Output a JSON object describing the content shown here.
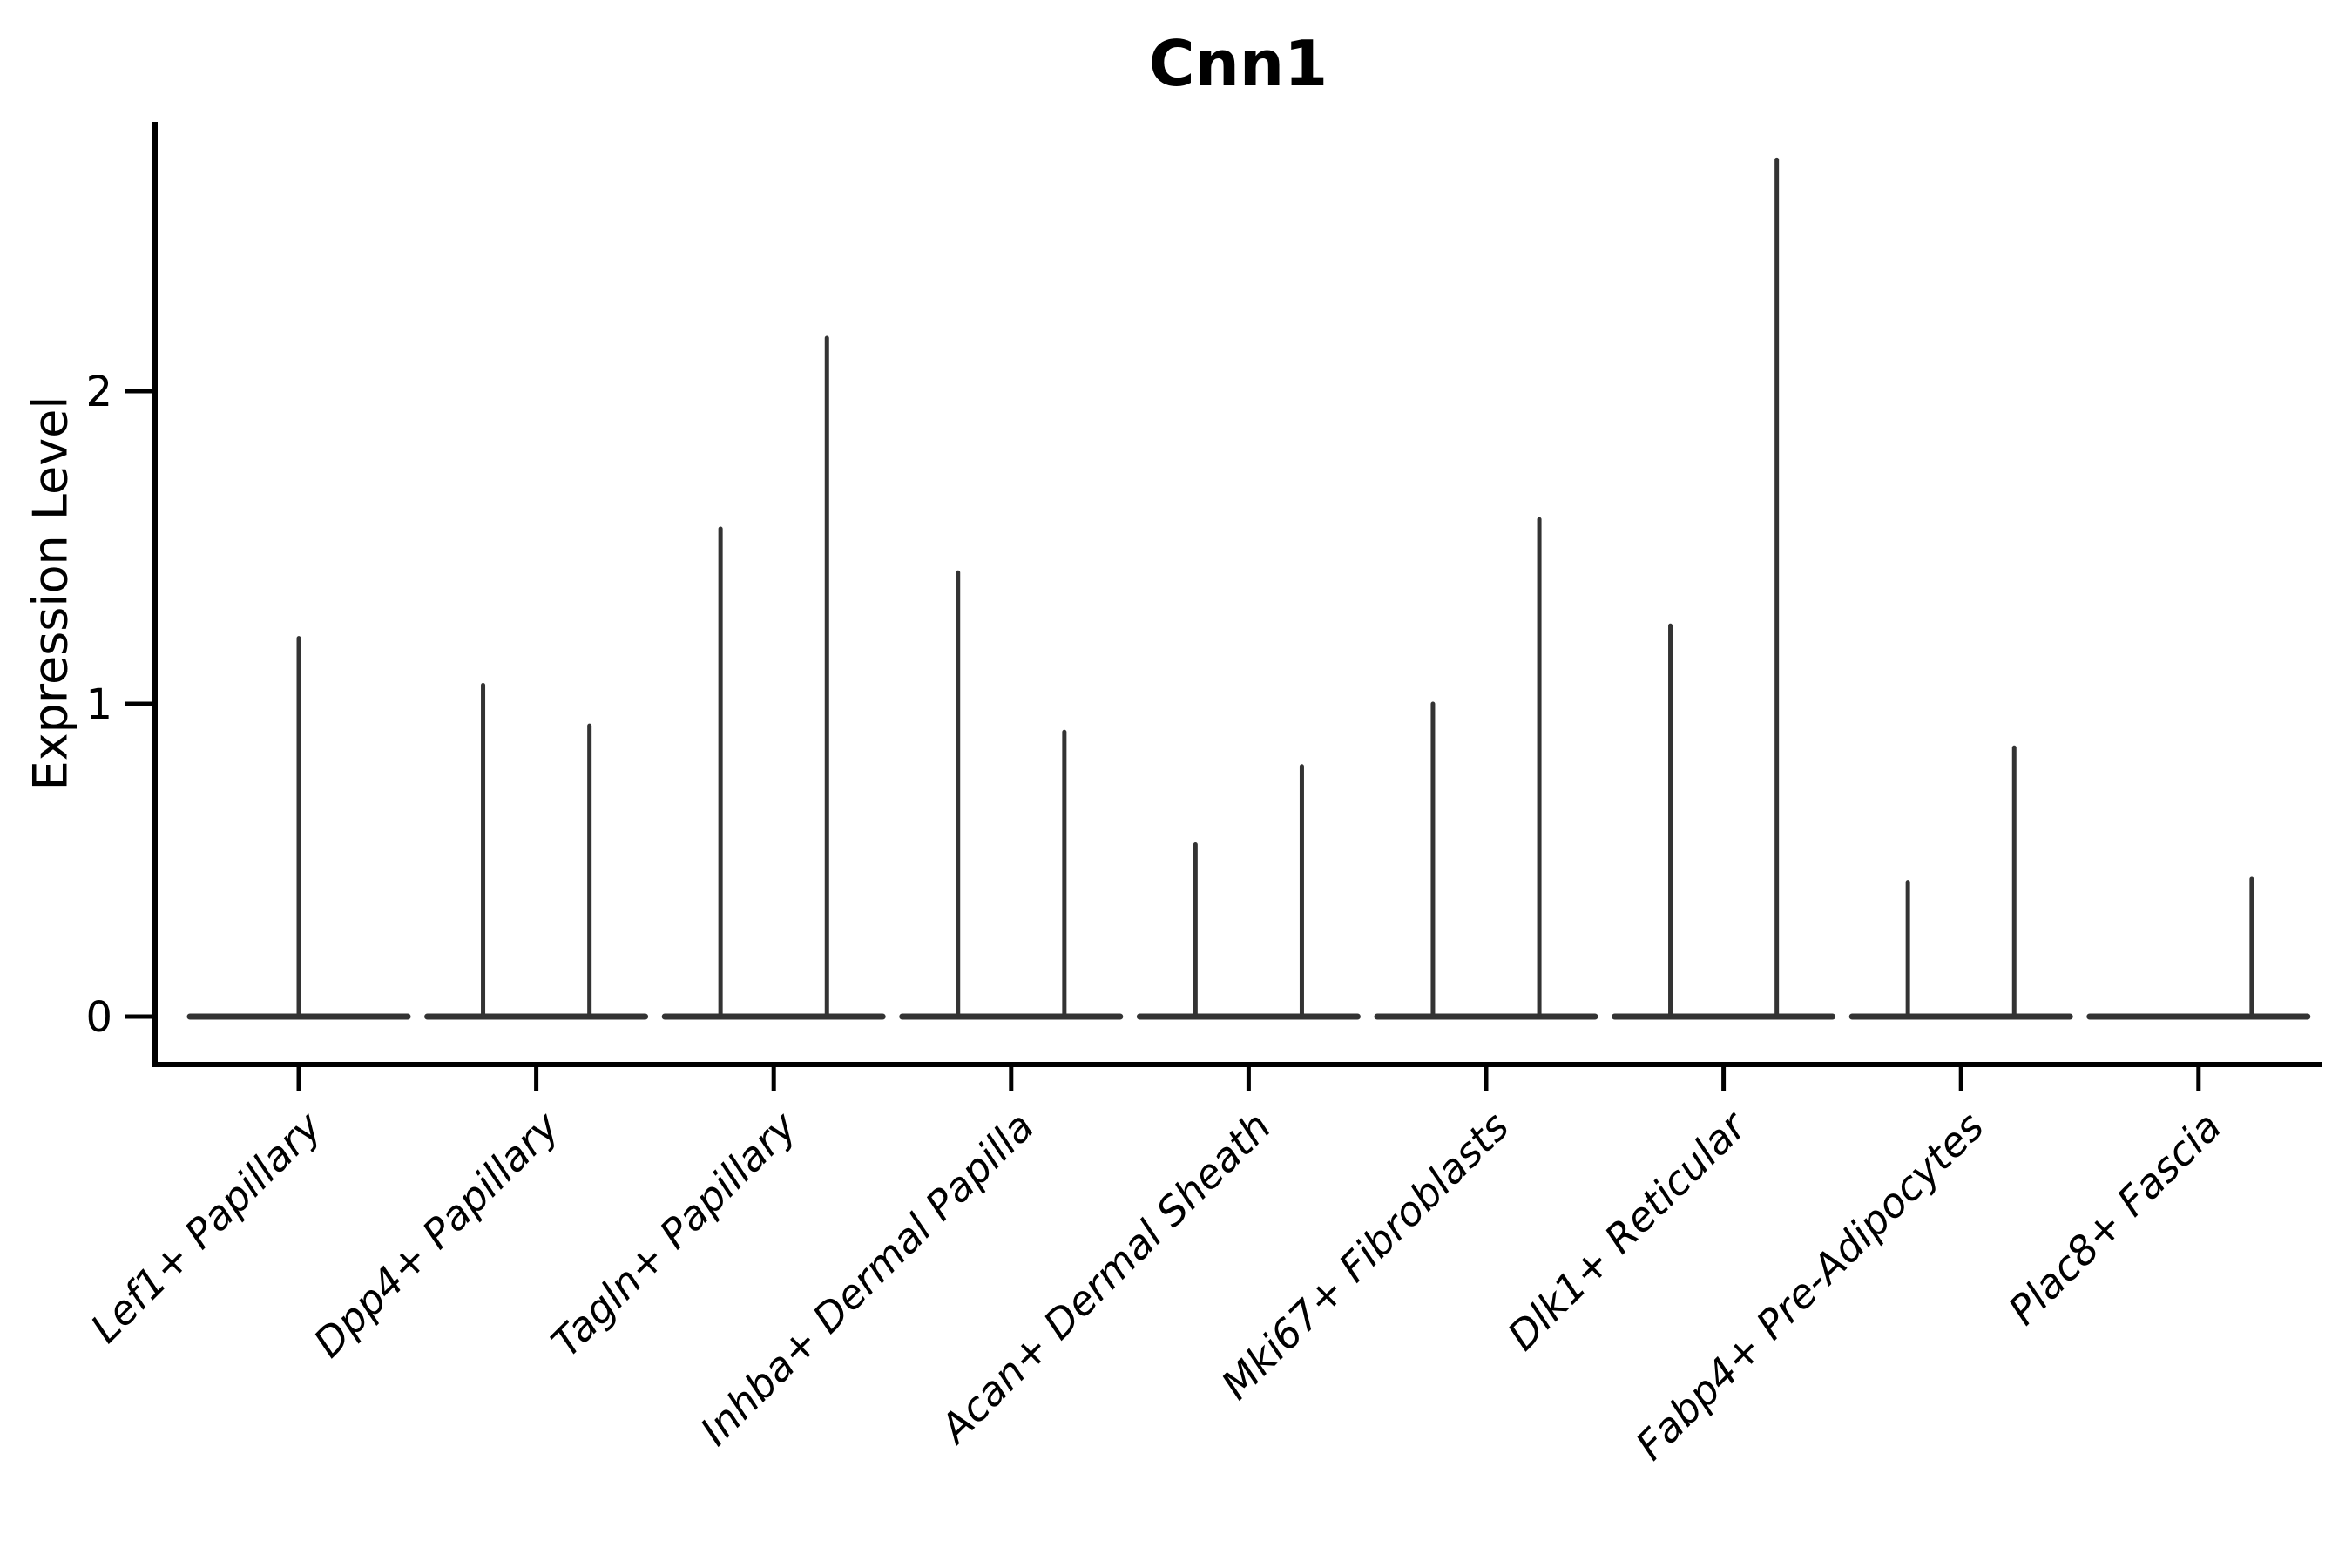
{
  "colors": {
    "background": "#ffffff",
    "violin_line": "#333333",
    "axis": "#000000",
    "text": "#000000"
  },
  "chart_data": {
    "type": "violin",
    "title": "Cnn1",
    "xlabel": "",
    "ylabel": "Expression Level",
    "yticks": [
      "0",
      "1",
      "2"
    ],
    "ytick_values": [
      0,
      1,
      2
    ],
    "ylim": [
      -0.15,
      2.86
    ],
    "grid": false,
    "legend": false,
    "x_tick_rotation_deg": 45,
    "x_tick_style": "italic",
    "categories": [
      "Lef1+ Papillary",
      "Dpp4+ Papillary",
      "Tagln+ Papillary",
      "Inhba+ Dermal Papilla",
      "Acan+ Dermal Sheath",
      "Mki67+ Fibroblasts",
      "Dlk1+ Reticular",
      "Fabp4+ Pre-Adipocytes",
      "Plac8+ Fascia"
    ],
    "violins": [
      {
        "category": "Lef1+ Papillary",
        "baseline_value": 0,
        "spikes": [
          {
            "offset_frac": 0.0,
            "value": 1.21
          }
        ]
      },
      {
        "category": "Dpp4+ Papillary",
        "baseline_value": 0,
        "spikes": [
          {
            "offset_frac": -0.224,
            "value": 1.06
          },
          {
            "offset_frac": 0.224,
            "value": 0.93
          }
        ]
      },
      {
        "category": "Tagln+ Papillary",
        "baseline_value": 0,
        "spikes": [
          {
            "offset_frac": -0.224,
            "value": 1.56
          },
          {
            "offset_frac": 0.224,
            "value": 2.17
          }
        ]
      },
      {
        "category": "Inhba+ Dermal Papilla",
        "baseline_value": 0,
        "spikes": [
          {
            "offset_frac": -0.224,
            "value": 1.42
          },
          {
            "offset_frac": 0.224,
            "value": 0.91
          }
        ]
      },
      {
        "category": "Acan+ Dermal Sheath",
        "baseline_value": 0,
        "spikes": [
          {
            "offset_frac": -0.224,
            "value": 0.55
          },
          {
            "offset_frac": 0.224,
            "value": 0.8
          }
        ]
      },
      {
        "category": "Mki67+ Fibroblasts",
        "baseline_value": 0,
        "spikes": [
          {
            "offset_frac": -0.224,
            "value": 1.0
          },
          {
            "offset_frac": 0.224,
            "value": 1.59
          }
        ]
      },
      {
        "category": "Dlk1+ Reticular",
        "baseline_value": 0,
        "spikes": [
          {
            "offset_frac": -0.224,
            "value": 1.25
          },
          {
            "offset_frac": 0.224,
            "value": 2.74
          }
        ]
      },
      {
        "category": "Fabp4+ Pre-Adipocytes",
        "baseline_value": 0,
        "spikes": [
          {
            "offset_frac": -0.224,
            "value": 0.43
          },
          {
            "offset_frac": 0.224,
            "value": 0.86
          }
        ]
      },
      {
        "category": "Plac8+ Fascia",
        "baseline_value": 0,
        "spikes": [
          {
            "offset_frac": 0.224,
            "value": 0.44
          }
        ]
      }
    ]
  }
}
